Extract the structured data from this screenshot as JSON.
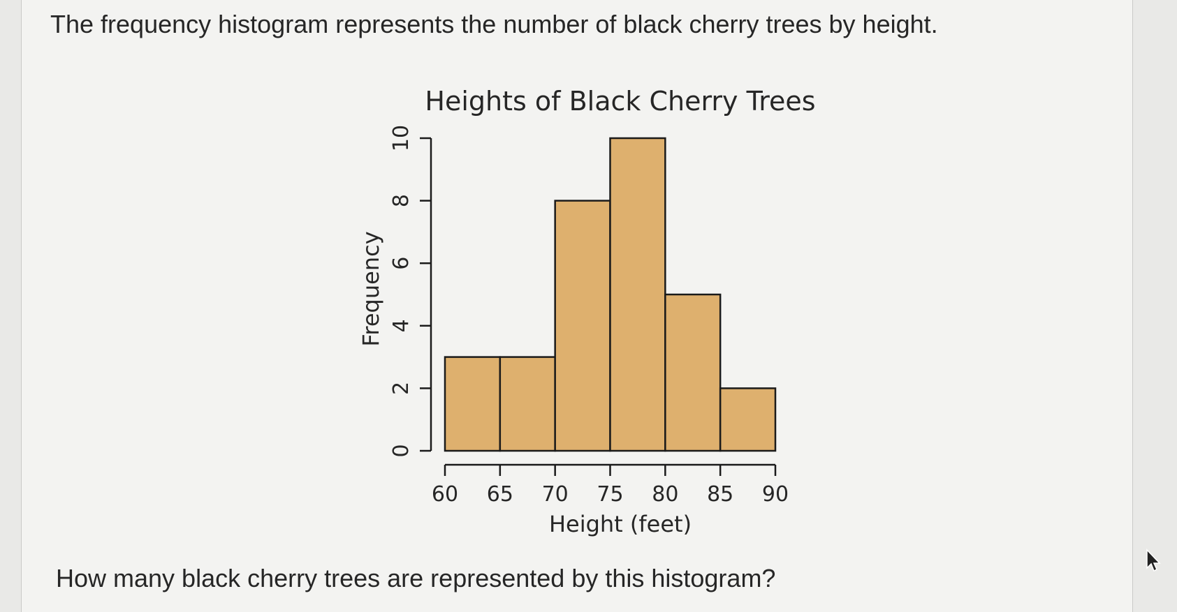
{
  "question_text": "The frequency histogram represents the number of black cherry trees by height.",
  "prompt_text": "How many black cherry trees are represented by this histogram?",
  "colors": {
    "bar_fill": "#deb06e",
    "bar_stroke": "#1a1a1a",
    "text": "#262626"
  },
  "chart_data": {
    "type": "bar",
    "title": "Heights of Black Cherry Trees",
    "xlabel": "Height (feet)",
    "ylabel": "Frequency",
    "bin_edges": [
      60,
      65,
      70,
      75,
      80,
      85,
      90
    ],
    "values": [
      3,
      3,
      8,
      10,
      5,
      2
    ],
    "x_ticks": [
      "60",
      "65",
      "70",
      "75",
      "80",
      "85",
      "90"
    ],
    "y_ticks": [
      "0",
      "2",
      "4",
      "6",
      "8",
      "10"
    ],
    "xlim": [
      60,
      90
    ],
    "ylim": [
      0,
      10
    ],
    "grid": false,
    "legend": "none"
  }
}
